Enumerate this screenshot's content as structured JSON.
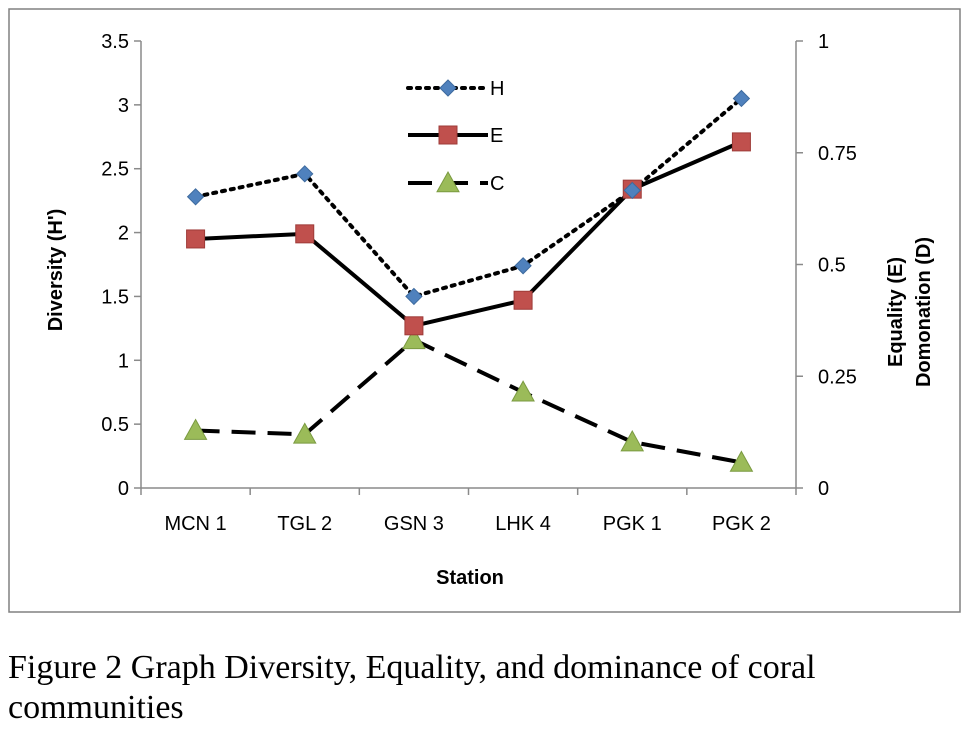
{
  "chart_data": {
    "type": "line",
    "categories": [
      "MCN 1",
      "TGL 2",
      "GSN 3",
      "LHK 4",
      "PGK 1",
      "PGK 2"
    ],
    "xlabel": "Station",
    "ylabel_left": "Diversity (H')",
    "ylabel_right_line1": "Equality (E)",
    "ylabel_right_line2": "Domonation (D)",
    "ylim_left": [
      0,
      3.5
    ],
    "ylim_right": [
      0,
      1
    ],
    "yticks_left": [
      "0",
      "0.5",
      "1",
      "1.5",
      "2",
      "2.5",
      "3",
      "3.5"
    ],
    "yticks_right": [
      "0",
      "0.25",
      "0.5",
      "0.75",
      "1"
    ],
    "legend_position": "top-center",
    "grid": false,
    "series": [
      {
        "name": "H",
        "axis": "left",
        "values": [
          2.28,
          2.46,
          1.5,
          1.74,
          2.33,
          3.05
        ],
        "color": "#4f81bd",
        "marker": "diamond",
        "line": "dotted"
      },
      {
        "name": "E",
        "axis": "left",
        "values": [
          1.95,
          1.99,
          1.27,
          1.47,
          2.34,
          2.71
        ],
        "color": "#c0504d",
        "marker": "square",
        "line": "solid"
      },
      {
        "name": "C",
        "axis": "left",
        "values": [
          0.45,
          0.42,
          1.16,
          0.75,
          0.36,
          0.2
        ],
        "color": "#9bbb59",
        "marker": "triangle",
        "line": "dashed"
      }
    ]
  },
  "caption": "Figure 2 Graph Diversity, Equality, and dominance of coral communities"
}
